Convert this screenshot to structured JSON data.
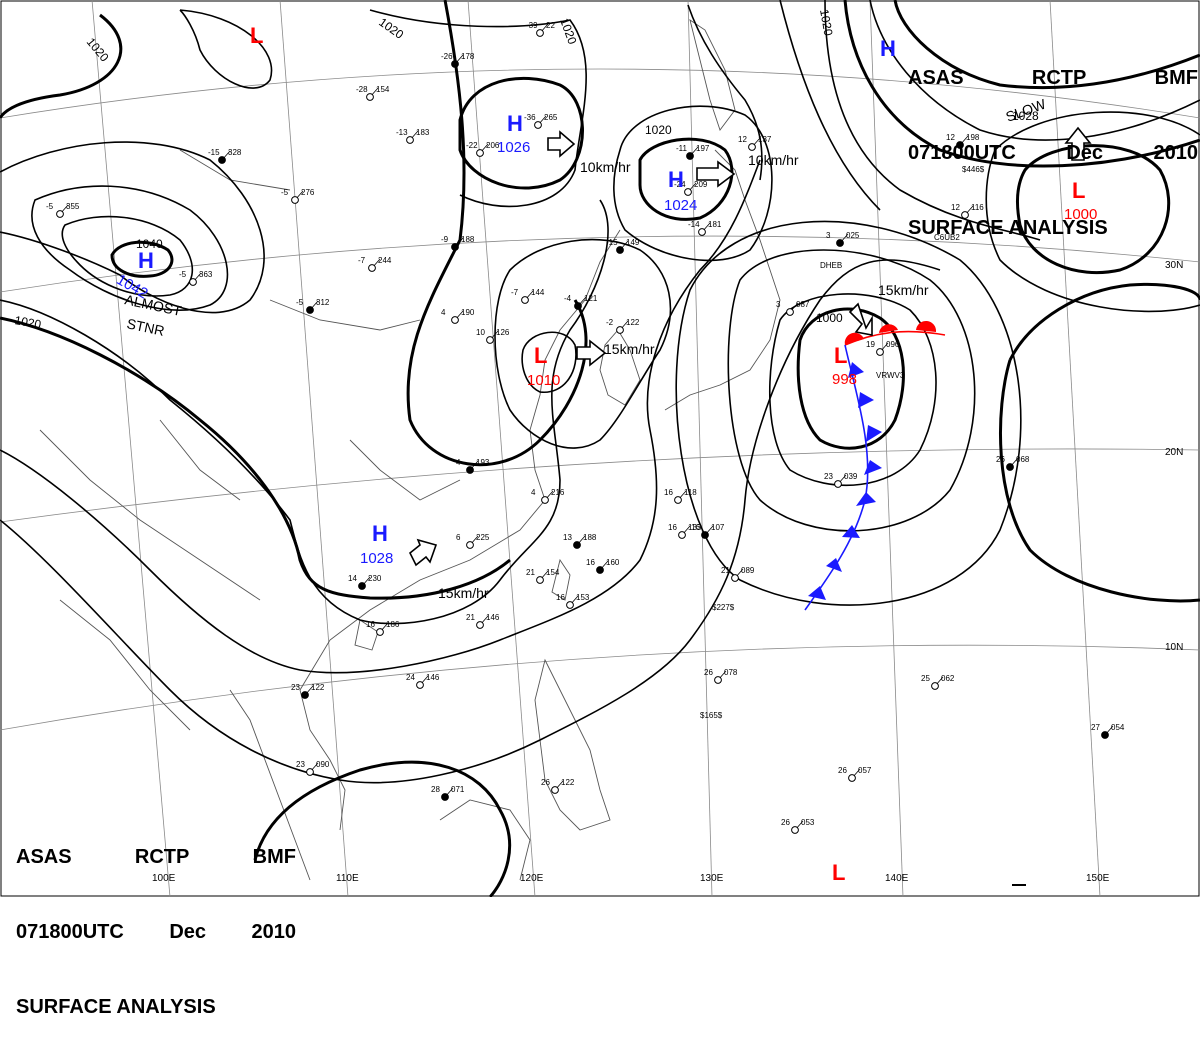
{
  "header": {
    "agency_line": [
      "ASAS",
      "RCTP",
      "BMF"
    ],
    "time_line": [
      "071800UTC",
      "Dec",
      "2010"
    ],
    "product": "SURFACE ANALYSIS"
  },
  "graticule": {
    "lat_labels": [
      "30N",
      "20N",
      "10N"
    ],
    "lon_labels": [
      "100E",
      "110E",
      "120E",
      "130E",
      "140E",
      "150E"
    ]
  },
  "pressure_centers": [
    {
      "type": "H",
      "value": "1042",
      "color": "#1a1aff"
    },
    {
      "type": "H",
      "value": "1026",
      "color": "#1a1aff"
    },
    {
      "type": "H",
      "value": "1024",
      "color": "#1a1aff"
    },
    {
      "type": "H",
      "value": "1028",
      "color": "#1a1aff"
    },
    {
      "type": "H",
      "value": "",
      "color": "#1a1aff"
    },
    {
      "type": "L",
      "value": "1010",
      "color": "#ff0000"
    },
    {
      "type": "L",
      "value": "998",
      "color": "#ff0000"
    },
    {
      "type": "L",
      "value": "1000",
      "color": "#ff0000"
    },
    {
      "type": "L",
      "value": "",
      "color": "#ff0000"
    },
    {
      "type": "L",
      "value": "",
      "color": "#ff0000"
    }
  ],
  "isobar_labels": [
    "1020",
    "1020",
    "1020",
    "1020",
    "1040",
    "1020",
    "1000",
    "1028",
    "1020"
  ],
  "motion_labels": [
    "10km/hr",
    "10km/hr",
    "15km/hr",
    "15km/hr",
    "15km/hr",
    "ALMOST",
    "STNR",
    "SLOW"
  ],
  "stations": [
    {
      "p": "178",
      "t": "-26"
    },
    {
      "p": "154",
      "t": "-28"
    },
    {
      "p": "183",
      "t": "-13"
    },
    {
      "p": "328",
      "t": "-15"
    },
    {
      "p": "276",
      "t": "-5"
    },
    {
      "p": "244",
      "t": "-7"
    },
    {
      "p": "188",
      "t": "-9"
    },
    {
      "p": "190",
      "t": "4"
    },
    {
      "p": "144",
      "t": "-7"
    },
    {
      "p": "121",
      "t": "-4"
    },
    {
      "p": "126",
      "t": "10"
    },
    {
      "p": "122",
      "t": "-2"
    },
    {
      "p": "149",
      "t": "-15"
    },
    {
      "p": "209",
      "t": "-24"
    },
    {
      "p": "181",
      "t": "-14"
    },
    {
      "p": "197",
      "t": "-11"
    },
    {
      "p": "265",
      "t": "-36"
    },
    {
      "p": "206",
      "t": "-22"
    },
    {
      "p": "312",
      "t": "-5"
    },
    {
      "p": "363",
      "t": "-5"
    },
    {
      "p": "355",
      "t": "-5"
    },
    {
      "p": "193",
      "t": "4"
    },
    {
      "p": "216",
      "t": "4"
    },
    {
      "p": "225",
      "t": "6"
    },
    {
      "p": "230",
      "t": "14"
    },
    {
      "p": "186",
      "t": "16"
    },
    {
      "p": "146",
      "t": "21"
    },
    {
      "p": "160",
      "t": "16"
    },
    {
      "p": "153",
      "t": "16"
    },
    {
      "p": "154",
      "t": "21"
    },
    {
      "p": "188",
      "t": "13"
    },
    {
      "p": "118",
      "t": "16"
    },
    {
      "p": "133",
      "t": "16"
    },
    {
      "p": "107",
      "t": "16"
    },
    {
      "p": "089",
      "t": "21"
    },
    {
      "p": "039",
      "t": "23"
    },
    {
      "p": "068",
      "t": "26"
    },
    {
      "p": "078",
      "t": "26"
    },
    {
      "p": "062",
      "t": "25"
    },
    {
      "p": "054",
      "t": "27"
    },
    {
      "p": "057",
      "t": "26"
    },
    {
      "p": "053",
      "t": "26"
    },
    {
      "p": "122",
      "t": "23"
    },
    {
      "p": "146",
      "t": "24"
    },
    {
      "p": "090",
      "t": "23"
    },
    {
      "p": "071",
      "t": "28"
    },
    {
      "p": "122",
      "t": "26"
    },
    {
      "p": "096",
      "t": "19"
    },
    {
      "p": "025",
      "t": "3"
    },
    {
      "p": "087",
      "t": "3"
    },
    {
      "p": "116",
      "t": "12"
    },
    {
      "p": "198",
      "t": "12"
    },
    {
      "p": "137",
      "t": "12"
    },
    {
      "p": "22",
      "t": "-39"
    }
  ],
  "station_codes": [
    "$446$",
    "DHEB",
    "C6UB2",
    "VRWV3",
    "$227$",
    "$165$"
  ]
}
